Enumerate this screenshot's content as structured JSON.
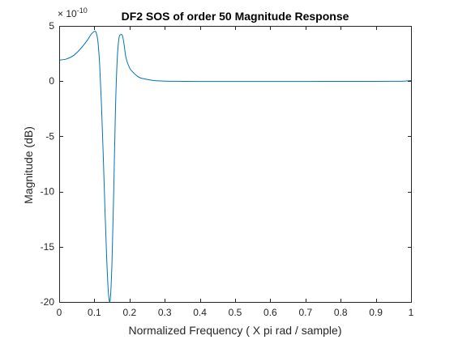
{
  "chart_data": {
    "type": "line",
    "title": "DF2 SOS of order 50 Magnitude Response",
    "xlabel": "Normalized Frequency ( X pi rad / sample)",
    "ylabel": "Magnitude (dB)",
    "exponent_base": "× 10",
    "exponent_power": "-10",
    "xlim": [
      0,
      1
    ],
    "ylim": [
      -20,
      5
    ],
    "grid": false,
    "line_color": "#0072BD",
    "xticks": [
      0,
      0.1,
      0.2,
      0.3,
      0.4,
      0.5,
      0.6,
      0.7,
      0.8,
      0.9,
      1
    ],
    "xtick_labels": [
      "0",
      "0.1",
      "0.2",
      "0.3",
      "0.4",
      "0.5",
      "0.6",
      "0.7",
      "0.8",
      "0.9",
      "1"
    ],
    "yticks": [
      5,
      0,
      -5,
      -10,
      -15,
      -20
    ],
    "ytick_labels": [
      "5",
      "0",
      "-5",
      "-10",
      "-15",
      "-20"
    ],
    "series": [
      {
        "x": [
          0,
          0.02,
          0.04,
          0.06,
          0.08,
          0.09,
          0.1,
          0.105,
          0.11,
          0.115,
          0.12,
          0.125,
          0.13,
          0.135,
          0.14,
          0.145,
          0.15,
          0.155,
          0.16,
          0.165,
          0.17,
          0.175,
          0.18,
          0.185,
          0.19,
          0.2,
          0.21,
          0.22,
          0.23,
          0.25,
          0.27,
          0.3,
          0.35,
          0.4,
          0.5,
          0.6,
          0.7,
          0.8,
          0.9,
          0.95,
          0.98,
          1
        ],
        "y": [
          1.9,
          2.0,
          2.3,
          2.9,
          3.7,
          4.2,
          4.5,
          4.4,
          3.6,
          1.5,
          -2.0,
          -6.5,
          -11.5,
          -16.0,
          -19.2,
          -19.8,
          -16.5,
          -10.0,
          -2.5,
          2.0,
          3.9,
          4.2,
          4.1,
          3.2,
          2.1,
          1.2,
          0.8,
          0.5,
          0.3,
          0.15,
          0.05,
          0.0,
          -0.02,
          -0.03,
          -0.03,
          -0.03,
          -0.03,
          -0.02,
          -0.02,
          -0.01,
          0.0,
          0.05
        ]
      }
    ]
  }
}
